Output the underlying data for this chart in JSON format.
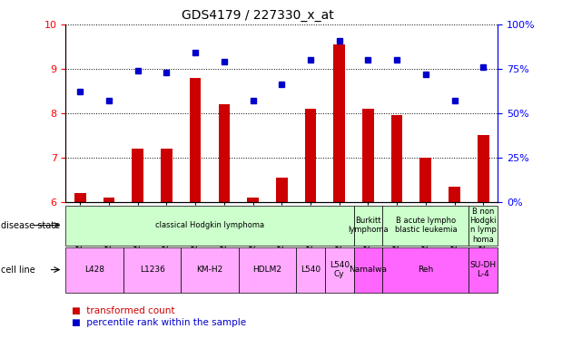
{
  "title": "GDS4179 / 227330_x_at",
  "samples": [
    "GSM499721",
    "GSM499729",
    "GSM499722",
    "GSM499730",
    "GSM499723",
    "GSM499731",
    "GSM499724",
    "GSM499732",
    "GSM499725",
    "GSM499726",
    "GSM499728",
    "GSM499734",
    "GSM499727",
    "GSM499733",
    "GSM499735"
  ],
  "transformed_count": [
    6.2,
    6.1,
    7.2,
    7.2,
    8.8,
    8.2,
    6.1,
    6.55,
    8.1,
    9.55,
    8.1,
    7.95,
    7.0,
    6.35,
    7.5
  ],
  "percentile_rank_raw": [
    62,
    57,
    74,
    73,
    84,
    79,
    57,
    66,
    80,
    91,
    80,
    80,
    72,
    57,
    76
  ],
  "ylim_left": [
    6,
    10
  ],
  "yticks_left": [
    6,
    7,
    8,
    9,
    10
  ],
  "yticks_right": [
    0,
    25,
    50,
    75,
    100
  ],
  "bar_color": "#cc0000",
  "dot_color": "#0000cc",
  "disease_state_groups": [
    {
      "label": "classical Hodgkin lymphoma",
      "start": 0,
      "end": 9,
      "color": "#ccffcc"
    },
    {
      "label": "Burkitt\nlymphoma",
      "start": 10,
      "end": 10,
      "color": "#ccffcc"
    },
    {
      "label": "B acute lympho\nblastic leukemia",
      "start": 11,
      "end": 13,
      "color": "#ccffcc"
    },
    {
      "label": "B non\nHodgki\nn lymp\nhoma",
      "start": 14,
      "end": 14,
      "color": "#ccffcc"
    }
  ],
  "cell_line_groups": [
    {
      "label": "L428",
      "start": 0,
      "end": 1,
      "color": "#ffaaff"
    },
    {
      "label": "L1236",
      "start": 2,
      "end": 3,
      "color": "#ffaaff"
    },
    {
      "label": "KM-H2",
      "start": 4,
      "end": 5,
      "color": "#ffaaff"
    },
    {
      "label": "HDLM2",
      "start": 6,
      "end": 7,
      "color": "#ffaaff"
    },
    {
      "label": "L540",
      "start": 8,
      "end": 8,
      "color": "#ffaaff"
    },
    {
      "label": "L540\nCy",
      "start": 9,
      "end": 9,
      "color": "#ffaaff"
    },
    {
      "label": "Namalwa",
      "start": 10,
      "end": 10,
      "color": "#ff66ff"
    },
    {
      "label": "Reh",
      "start": 11,
      "end": 13,
      "color": "#ff66ff"
    },
    {
      "label": "SU-DH\nL-4",
      "start": 14,
      "end": 14,
      "color": "#ff66ff"
    }
  ]
}
